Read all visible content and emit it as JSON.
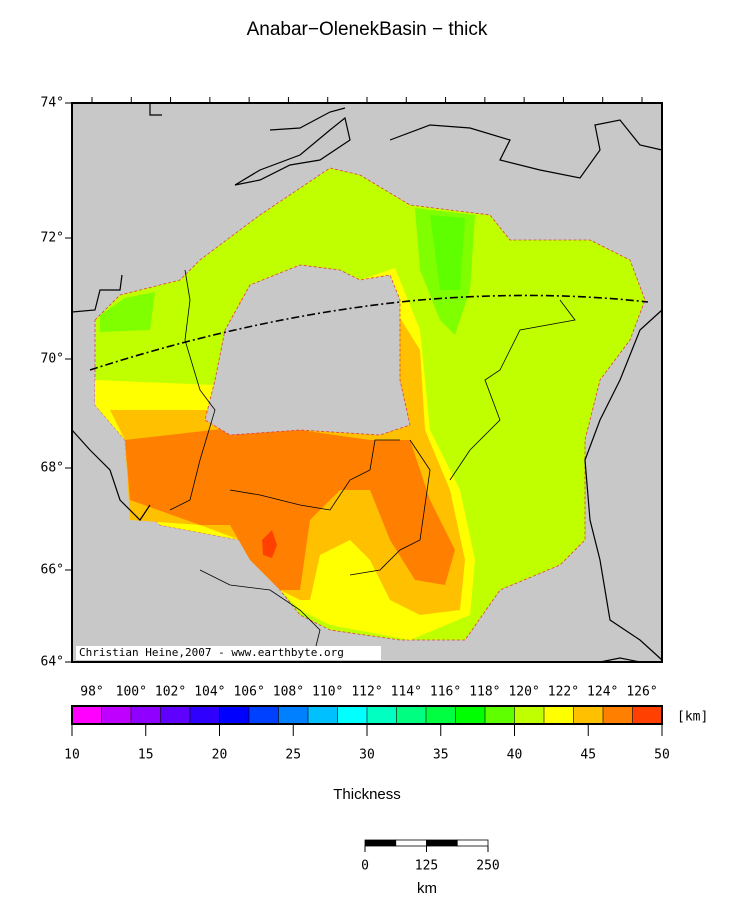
{
  "title": "Anabar−OlenekBasin − thick",
  "map": {
    "lat_labels": [
      "74°",
      "72°",
      "70°",
      "68°",
      "66°",
      "64°"
    ],
    "lon_labels": [
      "98°",
      "100°",
      "102°",
      "104°",
      "106°",
      "108°",
      "110°",
      "112°",
      "114°",
      "116°",
      "118°",
      "120°",
      "122°",
      "124°",
      "126°"
    ],
    "credit": "Christian Heine,2007 - www.earthbyte.org"
  },
  "colorbar": {
    "ticks": [
      10,
      15,
      20,
      25,
      30,
      35,
      40,
      45,
      50
    ],
    "unit": "[km]",
    "label": "Thickness",
    "colors": [
      "#ff00ff",
      "#c000ff",
      "#9000ff",
      "#6000ff",
      "#3000ff",
      "#0000ff",
      "#0040ff",
      "#0080ff",
      "#00c0ff",
      "#00ffff",
      "#00ffc0",
      "#00ff80",
      "#00ff40",
      "#00ff00",
      "#60ff00",
      "#c0ff00",
      "#ffff00",
      "#ffc000",
      "#ff8000",
      "#ff4000"
    ]
  },
  "scale_bar": {
    "ticks": [
      0,
      125,
      250
    ],
    "unit": "km"
  }
}
